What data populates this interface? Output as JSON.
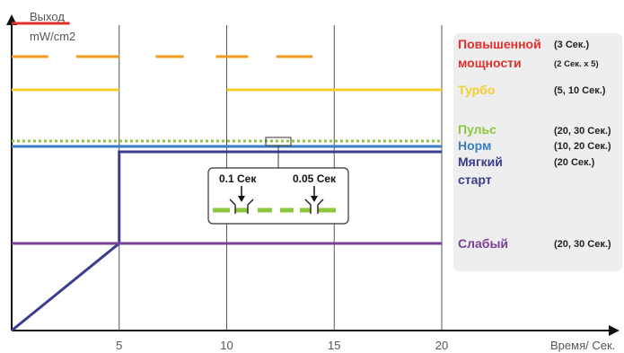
{
  "chart_data": {
    "type": "line",
    "ylabel_line1": "Выход",
    "ylabel_line2": "mW/cm2",
    "xlabel": "Время/ Сек.",
    "x_ticks": [
      "5",
      "10",
      "15",
      "20"
    ],
    "xlim": [
      0,
      20
    ],
    "series": [
      {
        "key": "boost",
        "segments": [
          [
            0,
            2.7
          ]
        ],
        "level": "highest",
        "color": "#e0302c"
      },
      {
        "key": "boost_pulse",
        "segments": [
          [
            0,
            1.7
          ],
          [
            3,
            5
          ],
          [
            6.7,
            8
          ],
          [
            9.5,
            11
          ],
          [
            12.3,
            14
          ]
        ],
        "level": "high",
        "color": "#f39a1e"
      },
      {
        "key": "turbo",
        "segments": [
          [
            0,
            5
          ],
          [
            10,
            20
          ]
        ],
        "level": "turbo",
        "color": "#f5cf2b"
      },
      {
        "key": "pulse",
        "segments": [
          [
            0,
            20
          ]
        ],
        "level": "pulse",
        "color": "#8cc63e",
        "dotted": true
      },
      {
        "key": "norm",
        "segments": [
          [
            0,
            20
          ]
        ],
        "level": "norm",
        "color": "#3a7fc1"
      },
      {
        "key": "softstart",
        "points": [
          [
            0,
            0
          ],
          [
            5,
            1
          ],
          [
            5,
            4
          ],
          [
            20,
            4
          ]
        ],
        "color": "#3a3d8f"
      },
      {
        "key": "weak",
        "segments": [
          [
            0,
            20
          ]
        ],
        "level": "weak",
        "color": "#7a3e96"
      }
    ],
    "inset": {
      "label_left": "0.1 Сек",
      "label_right": "0.05 Сек",
      "color": "#8cc63e"
    },
    "legend": {
      "boost_line1": "Повышенной",
      "boost_line2": "мощности",
      "boost_dur1": "(3 Сек.)",
      "boost_dur2": "(2 Сек. x 5)",
      "turbo": "Турбо",
      "turbo_dur": "(5, 10 Сек.)",
      "pulse": "Пульс",
      "pulse_dur": "(20, 30 Сек.)",
      "norm": "Норм",
      "norm_dur": "(10, 20 Сек.)",
      "soft_line1": "Мягкий",
      "soft_line2": "старт",
      "soft_dur": "(20 Сек.)",
      "weak": "Слабый",
      "weak_dur": "(20, 30 Сек.)"
    },
    "legend_colors": {
      "boost": "#e0302c",
      "turbo": "#f5cf2b",
      "pulse": "#8cc63e",
      "norm": "#3a7fc1",
      "soft": "#3a3d8f",
      "weak": "#7a3e96"
    },
    "grid": "vertical"
  }
}
